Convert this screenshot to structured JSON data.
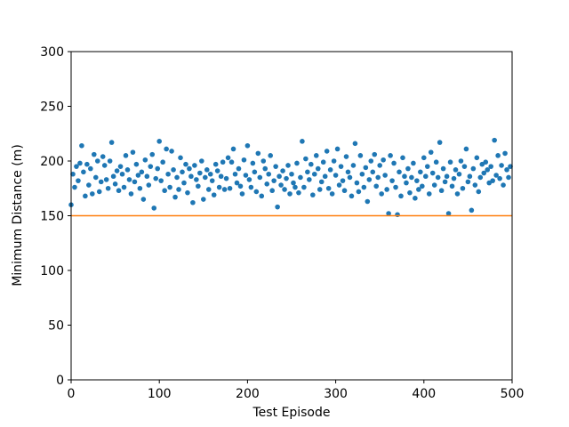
{
  "chart_data": {
    "type": "scatter",
    "xlabel": "Test Episode",
    "ylabel": "Minimum Distance (m)",
    "xlim": [
      0,
      500
    ],
    "ylim": [
      0,
      300
    ],
    "xticks": [
      0,
      100,
      200,
      300,
      400,
      500
    ],
    "yticks": [
      0,
      50,
      100,
      150,
      200,
      250,
      300
    ],
    "series": [
      {
        "type": "scatter",
        "color": "#1f77b4",
        "x": [
          0,
          2,
          4,
          6,
          8,
          10,
          12,
          14,
          16,
          18,
          20,
          22,
          24,
          26,
          28,
          30,
          32,
          34,
          36,
          38,
          40,
          42,
          44,
          46,
          48,
          50,
          52,
          54,
          56,
          58,
          60,
          62,
          64,
          66,
          68,
          70,
          72,
          74,
          76,
          78,
          80,
          82,
          84,
          86,
          88,
          90,
          92,
          94,
          96,
          98,
          100,
          102,
          104,
          106,
          108,
          110,
          112,
          114,
          116,
          118,
          120,
          122,
          124,
          126,
          128,
          130,
          132,
          134,
          136,
          138,
          140,
          142,
          144,
          146,
          148,
          150,
          152,
          154,
          156,
          158,
          160,
          162,
          164,
          166,
          168,
          170,
          172,
          174,
          176,
          178,
          180,
          182,
          184,
          186,
          188,
          190,
          192,
          194,
          196,
          198,
          200,
          202,
          204,
          206,
          208,
          210,
          212,
          214,
          216,
          218,
          220,
          222,
          224,
          226,
          228,
          230,
          232,
          234,
          236,
          238,
          240,
          242,
          244,
          246,
          248,
          250,
          252,
          254,
          256,
          258,
          260,
          262,
          264,
          266,
          268,
          270,
          272,
          274,
          276,
          278,
          280,
          282,
          284,
          286,
          288,
          290,
          292,
          294,
          296,
          298,
          300,
          302,
          304,
          306,
          308,
          310,
          312,
          314,
          316,
          318,
          320,
          322,
          324,
          326,
          328,
          330,
          332,
          334,
          336,
          338,
          340,
          342,
          344,
          346,
          348,
          350,
          352,
          354,
          356,
          358,
          360,
          362,
          364,
          366,
          368,
          370,
          372,
          374,
          376,
          378,
          380,
          382,
          384,
          386,
          388,
          390,
          392,
          394,
          396,
          398,
          400,
          402,
          404,
          406,
          408,
          410,
          412,
          414,
          416,
          418,
          420,
          422,
          424,
          426,
          428,
          430,
          432,
          434,
          436,
          438,
          440,
          442,
          444,
          446,
          448,
          450,
          452,
          454,
          456,
          458,
          460,
          462,
          464,
          466,
          468,
          470,
          472,
          474,
          476,
          478,
          480,
          482,
          484,
          486,
          488,
          490,
          492,
          494,
          496,
          498
        ],
        "values": [
          160,
          188,
          176,
          195,
          182,
          198,
          214,
          190,
          168,
          197,
          178,
          193,
          170,
          206,
          185,
          200,
          172,
          181,
          204,
          196,
          183,
          175,
          200,
          217,
          186,
          179,
          191,
          173,
          195,
          188,
          176,
          205,
          192,
          183,
          170,
          208,
          181,
          197,
          187,
          175,
          190,
          165,
          201,
          186,
          178,
          195,
          206,
          157,
          184,
          193,
          218,
          182,
          199,
          173,
          211,
          188,
          176,
          209,
          192,
          167,
          185,
          174,
          203,
          190,
          180,
          197,
          171,
          193,
          186,
          162,
          196,
          183,
          177,
          189,
          200,
          165,
          185,
          192,
          174,
          188,
          182,
          169,
          197,
          191,
          176,
          186,
          199,
          174,
          184,
          203,
          175,
          199,
          211,
          188,
          180,
          193,
          177,
          170,
          201,
          187,
          214,
          183,
          176,
          198,
          190,
          172,
          207,
          185,
          168,
          200,
          193,
          179,
          188,
          205,
          173,
          182,
          195,
          158,
          186,
          178,
          191,
          174,
          184,
          196,
          170,
          188,
          180,
          176,
          198,
          171,
          185,
          218,
          176,
          202,
          190,
          183,
          197,
          169,
          188,
          205,
          193,
          174,
          181,
          199,
          186,
          209,
          175,
          192,
          170,
          200,
          187,
          211,
          178,
          195,
          182,
          173,
          204,
          190,
          185,
          168,
          196,
          216,
          180,
          172,
          205,
          188,
          176,
          194,
          163,
          183,
          200,
          190,
          206,
          177,
          185,
          196,
          170,
          201,
          187,
          174,
          152,
          205,
          182,
          198,
          176,
          151,
          190,
          168,
          203,
          186,
          180,
          193,
          171,
          185,
          198,
          166,
          182,
          174,
          190,
          177,
          203,
          186,
          195,
          170,
          208,
          189,
          178,
          199,
          185,
          217,
          173,
          193,
          181,
          186,
          152,
          199,
          177,
          184,
          192,
          170,
          188,
          200,
          175,
          195,
          211,
          181,
          186,
          155,
          193,
          178,
          203,
          172,
          185,
          197,
          189,
          199,
          192,
          180,
          195,
          182,
          219,
          187,
          205,
          184,
          196,
          178,
          207,
          192,
          185,
          195
        ]
      },
      {
        "type": "line",
        "color": "#ff7f0e",
        "x": [
          0,
          500
        ],
        "values": [
          150,
          150
        ]
      }
    ]
  }
}
